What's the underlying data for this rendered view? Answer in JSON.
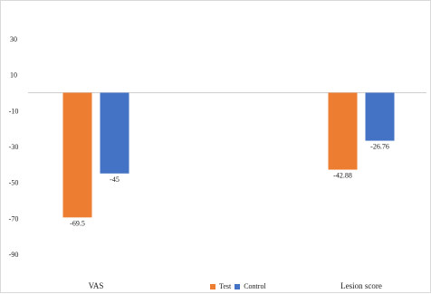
{
  "chart_data": {
    "type": "bar",
    "title": "",
    "xlabel": "",
    "ylabel": "",
    "categories": [
      "VAS",
      "Lesion score"
    ],
    "series": [
      {
        "name": "Test",
        "values": [
          -69.5,
          -42.88
        ],
        "labels": [
          "-69.5",
          "-42.88"
        ],
        "color": "#ed7d31"
      },
      {
        "name": "Control",
        "values": [
          -45,
          -26.76
        ],
        "labels": [
          "-45",
          "-26.76"
        ],
        "color": "#4472c4"
      }
    ],
    "ylim": [
      -90,
      30
    ],
    "yticks": [
      30,
      10,
      -10,
      -30,
      -50,
      -70,
      -90
    ],
    "grid": false,
    "legend_position": "bottom"
  }
}
